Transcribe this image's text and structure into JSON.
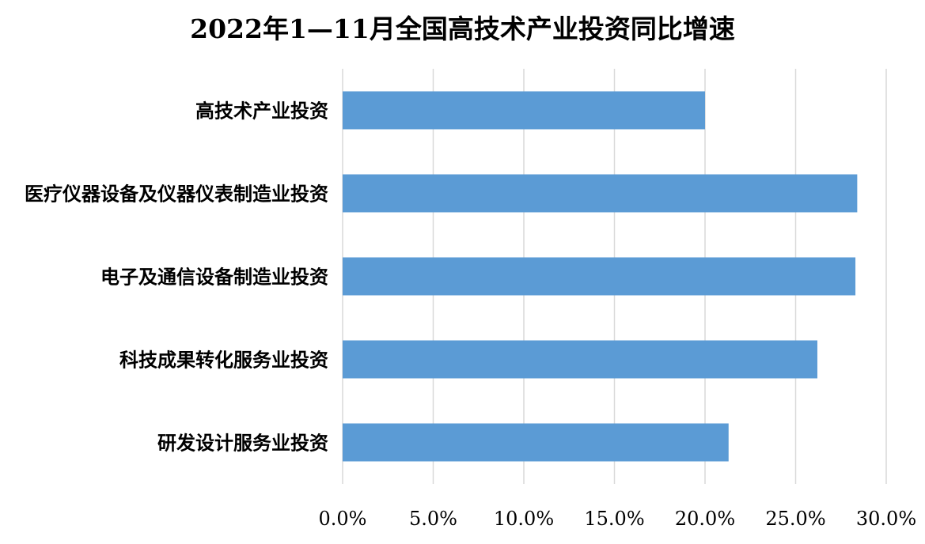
{
  "chart_data": {
    "type": "bar",
    "orientation": "horizontal",
    "title": "2022年1—11月全国高技术产业投资同比增速",
    "categories": [
      "高技术产业投资",
      "医疗仪器设备及仪器仪表制造业投资",
      "电子及通信设备制造业投资",
      "科技成果转化服务业投资",
      "研发设计服务业投资"
    ],
    "values": [
      20.0,
      28.4,
      28.3,
      26.2,
      21.3
    ],
    "xlim": [
      0,
      30
    ],
    "xticks": [
      "0.0%",
      "5.0%",
      "10.0%",
      "15.0%",
      "20.0%",
      "25.0%",
      "30.0%"
    ],
    "grid": true,
    "legend": "none",
    "bar_color": "#5b9bd5",
    "grid_color": "#d9d9d9"
  }
}
